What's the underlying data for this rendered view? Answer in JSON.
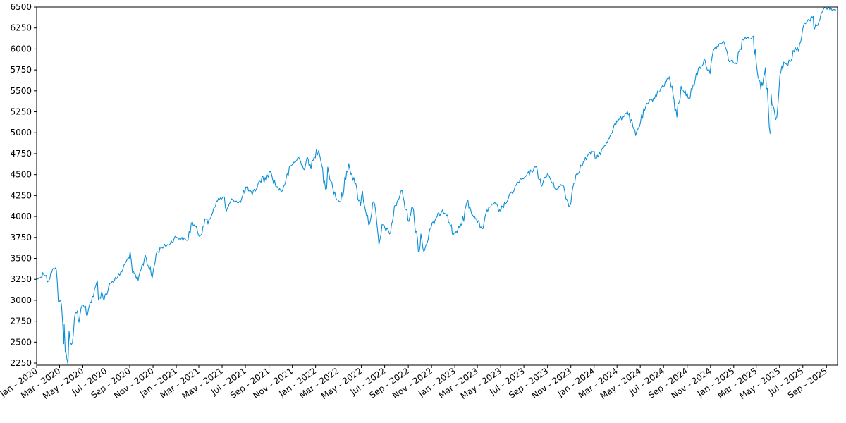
{
  "chart_data": {
    "type": "line",
    "title": "",
    "xlabel": "",
    "ylabel": "",
    "x_range": [
      "2020-01-01",
      "2025-09-30"
    ],
    "ylim": [
      2225,
      6500
    ],
    "y_ticks": [
      2250,
      2500,
      2750,
      3000,
      3250,
      3500,
      3750,
      4000,
      4250,
      4500,
      4750,
      5000,
      5250,
      5500,
      5750,
      6000,
      6250,
      6500
    ],
    "x_ticks": [
      {
        "date": "2020-01-01",
        "label": "Jan - 2020"
      },
      {
        "date": "2020-03-01",
        "label": "Mar - 2020"
      },
      {
        "date": "2020-05-01",
        "label": "May - 2020"
      },
      {
        "date": "2020-07-01",
        "label": "Jul - 2020"
      },
      {
        "date": "2020-09-01",
        "label": "Sep - 2020"
      },
      {
        "date": "2020-11-01",
        "label": "Nov - 2020"
      },
      {
        "date": "2021-01-01",
        "label": "Jan - 2021"
      },
      {
        "date": "2021-03-01",
        "label": "Mar - 2021"
      },
      {
        "date": "2021-05-01",
        "label": "May - 2021"
      },
      {
        "date": "2021-07-01",
        "label": "Jul - 2021"
      },
      {
        "date": "2021-09-01",
        "label": "Sep - 2021"
      },
      {
        "date": "2021-11-01",
        "label": "Nov - 2021"
      },
      {
        "date": "2022-01-01",
        "label": "Jan - 2022"
      },
      {
        "date": "2022-03-01",
        "label": "Mar - 2022"
      },
      {
        "date": "2022-05-01",
        "label": "May - 2022"
      },
      {
        "date": "2022-07-01",
        "label": "Jul - 2022"
      },
      {
        "date": "2022-09-01",
        "label": "Sep - 2022"
      },
      {
        "date": "2022-11-01",
        "label": "Nov - 2022"
      },
      {
        "date": "2023-01-01",
        "label": "Jan - 2023"
      },
      {
        "date": "2023-03-01",
        "label": "Mar - 2023"
      },
      {
        "date": "2023-05-01",
        "label": "May - 2023"
      },
      {
        "date": "2023-07-01",
        "label": "Jul - 2023"
      },
      {
        "date": "2023-09-01",
        "label": "Sep - 2023"
      },
      {
        "date": "2023-11-01",
        "label": "Nov - 2023"
      },
      {
        "date": "2024-01-01",
        "label": "Jan - 2024"
      },
      {
        "date": "2024-03-01",
        "label": "Mar - 2024"
      },
      {
        "date": "2024-05-01",
        "label": "May - 2024"
      },
      {
        "date": "2024-07-01",
        "label": "Jul - 2024"
      },
      {
        "date": "2024-09-01",
        "label": "Sep - 2024"
      },
      {
        "date": "2024-11-01",
        "label": "Nov - 2024"
      },
      {
        "date": "2025-01-01",
        "label": "Jan - 2025"
      },
      {
        "date": "2025-03-01",
        "label": "Mar - 2025"
      },
      {
        "date": "2025-05-01",
        "label": "May - 2025"
      },
      {
        "date": "2025-07-01",
        "label": "Jul - 2025"
      },
      {
        "date": "2025-09-01",
        "label": "Sep - 2025"
      }
    ],
    "grid": false,
    "line_color": "#0a8fd6",
    "series": [
      {
        "points": [
          [
            "2020-01-02",
            3258
          ],
          [
            "2020-01-10",
            3265
          ],
          [
            "2020-01-17",
            3330
          ],
          [
            "2020-01-24",
            3295
          ],
          [
            "2020-01-31",
            3225
          ],
          [
            "2020-02-07",
            3328
          ],
          [
            "2020-02-14",
            3380
          ],
          [
            "2020-02-19",
            3386
          ],
          [
            "2020-02-24",
            3225
          ],
          [
            "2020-02-27",
            2978
          ],
          [
            "2020-03-03",
            3003
          ],
          [
            "2020-03-09",
            2746
          ],
          [
            "2020-03-12",
            2480
          ],
          [
            "2020-03-13",
            2711
          ],
          [
            "2020-03-16",
            2386
          ],
          [
            "2020-03-20",
            2304
          ],
          [
            "2020-03-23",
            2237
          ],
          [
            "2020-03-26",
            2630
          ],
          [
            "2020-04-01",
            2470
          ],
          [
            "2020-04-09",
            2789
          ],
          [
            "2020-04-17",
            2875
          ],
          [
            "2020-04-21",
            2737
          ],
          [
            "2020-04-29",
            2939
          ],
          [
            "2020-05-08",
            2930
          ],
          [
            "2020-05-13",
            2820
          ],
          [
            "2020-05-20",
            2971
          ],
          [
            "2020-05-29",
            3044
          ],
          [
            "2020-06-08",
            3232
          ],
          [
            "2020-06-11",
            3002
          ],
          [
            "2020-06-19",
            3098
          ],
          [
            "2020-06-26",
            3009
          ],
          [
            "2020-07-08",
            3170
          ],
          [
            "2020-07-17",
            3225
          ],
          [
            "2020-07-31",
            3271
          ],
          [
            "2020-08-14",
            3372
          ],
          [
            "2020-08-28",
            3508
          ],
          [
            "2020-09-02",
            3580
          ],
          [
            "2020-09-08",
            3332
          ],
          [
            "2020-09-23",
            3237
          ],
          [
            "2020-10-12",
            3535
          ],
          [
            "2020-10-30",
            3270
          ],
          [
            "2020-11-09",
            3550
          ],
          [
            "2020-11-24",
            3635
          ],
          [
            "2020-12-11",
            3663
          ],
          [
            "2020-12-31",
            3756
          ],
          [
            "2021-01-29",
            3714
          ],
          [
            "2021-02-12",
            3934
          ],
          [
            "2021-03-04",
            3768
          ],
          [
            "2021-03-17",
            3974
          ],
          [
            "2021-03-25",
            3909
          ],
          [
            "2021-04-16",
            4185
          ],
          [
            "2021-05-07",
            4232
          ],
          [
            "2021-05-12",
            4063
          ],
          [
            "2021-05-28",
            4204
          ],
          [
            "2021-06-18",
            4166
          ],
          [
            "2021-07-02",
            4352
          ],
          [
            "2021-07-19",
            4258
          ],
          [
            "2021-08-16",
            4479
          ],
          [
            "2021-08-19",
            4405
          ],
          [
            "2021-09-02",
            4537
          ],
          [
            "2021-09-21",
            4354
          ],
          [
            "2021-10-04",
            4300
          ],
          [
            "2021-10-29",
            4605
          ],
          [
            "2021-11-18",
            4704
          ],
          [
            "2021-11-30",
            4567
          ],
          [
            "2021-12-10",
            4712
          ],
          [
            "2021-12-20",
            4568
          ],
          [
            "2022-01-03",
            4796
          ],
          [
            "2022-01-12",
            4726
          ],
          [
            "2022-01-27",
            4326
          ],
          [
            "2022-02-02",
            4589
          ],
          [
            "2022-02-23",
            4225
          ],
          [
            "2022-03-08",
            4170
          ],
          [
            "2022-03-29",
            4631
          ],
          [
            "2022-04-14",
            4393
          ],
          [
            "2022-04-29",
            4132
          ],
          [
            "2022-05-04",
            4300
          ],
          [
            "2022-05-20",
            3901
          ],
          [
            "2022-06-02",
            4176
          ],
          [
            "2022-06-16",
            3666
          ],
          [
            "2022-06-27",
            3900
          ],
          [
            "2022-07-14",
            3790
          ],
          [
            "2022-07-29",
            4130
          ],
          [
            "2022-08-16",
            4305
          ],
          [
            "2022-08-31",
            3955
          ],
          [
            "2022-09-12",
            4110
          ],
          [
            "2022-09-30",
            3586
          ],
          [
            "2022-10-04",
            3791
          ],
          [
            "2022-10-12",
            3577
          ],
          [
            "2022-10-31",
            3872
          ],
          [
            "2022-11-15",
            3991
          ],
          [
            "2022-11-30",
            4080
          ],
          [
            "2022-12-13",
            4019
          ],
          [
            "2022-12-28",
            3783
          ],
          [
            "2023-01-19",
            3898
          ],
          [
            "2023-02-02",
            4179
          ],
          [
            "2023-02-24",
            3970
          ],
          [
            "2023-03-13",
            3855
          ],
          [
            "2023-03-31",
            4109
          ],
          [
            "2023-04-18",
            4154
          ],
          [
            "2023-04-26",
            4055
          ],
          [
            "2023-05-19",
            4192
          ],
          [
            "2023-06-16",
            4410
          ],
          [
            "2023-06-30",
            4450
          ],
          [
            "2023-07-31",
            4589
          ],
          [
            "2023-08-18",
            4370
          ],
          [
            "2023-09-01",
            4515
          ],
          [
            "2023-09-21",
            4330
          ],
          [
            "2023-10-11",
            4376
          ],
          [
            "2023-10-27",
            4117
          ],
          [
            "2023-11-14",
            4495
          ],
          [
            "2023-12-14",
            4719
          ],
          [
            "2023-12-29",
            4770
          ],
          [
            "2024-01-04",
            4688
          ],
          [
            "2024-01-31",
            4846
          ],
          [
            "2024-02-22",
            5087
          ],
          [
            "2024-03-28",
            5254
          ],
          [
            "2024-04-19",
            4967
          ],
          [
            "2024-05-15",
            5308
          ],
          [
            "2024-06-18",
            5487
          ],
          [
            "2024-07-16",
            5667
          ],
          [
            "2024-08-05",
            5186
          ],
          [
            "2024-08-16",
            5554
          ],
          [
            "2024-09-06",
            5408
          ],
          [
            "2024-09-30",
            5762
          ],
          [
            "2024-10-18",
            5864
          ],
          [
            "2024-10-31",
            5705
          ],
          [
            "2024-11-11",
            6001
          ],
          [
            "2024-12-06",
            6090
          ],
          [
            "2024-12-18",
            5872
          ],
          [
            "2025-01-10",
            5827
          ],
          [
            "2025-01-23",
            6119
          ],
          [
            "2025-02-19",
            6144
          ],
          [
            "2025-03-13",
            5521
          ],
          [
            "2025-03-25",
            5777
          ],
          [
            "2025-04-04",
            5074
          ],
          [
            "2025-04-08",
            4982
          ],
          [
            "2025-04-09",
            5457
          ],
          [
            "2025-04-21",
            5158
          ],
          [
            "2025-05-02",
            5687
          ],
          [
            "2025-05-12",
            5844
          ],
          [
            "2025-05-23",
            5802
          ],
          [
            "2025-06-11",
            6022
          ],
          [
            "2025-06-20",
            5967
          ],
          [
            "2025-07-03",
            6279
          ],
          [
            "2025-07-28",
            6390
          ],
          [
            "2025-08-01",
            6238
          ],
          [
            "2025-08-28",
            6501
          ],
          [
            "2025-09-05",
            6482
          ],
          [
            "2025-09-26",
            6470
          ]
        ]
      }
    ]
  }
}
